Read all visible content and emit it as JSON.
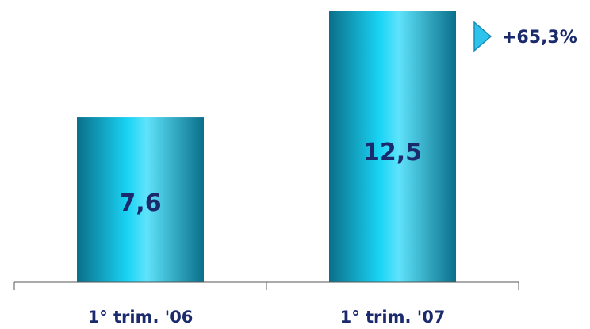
{
  "chart_data": {
    "type": "bar",
    "categories": [
      "1° trim. '06",
      "1° trim. '07"
    ],
    "values": [
      7.6,
      12.5
    ],
    "value_labels": [
      "7,6",
      "12,5"
    ],
    "title": "",
    "xlabel": "",
    "ylabel": "",
    "ylim": [
      0,
      12.5
    ],
    "grid": false,
    "legend": "none",
    "annotation": {
      "text": "+65,3%",
      "icon": "triangle-right-icon"
    },
    "colors": {
      "bar_edge": "#0a6f8a",
      "bar_mid": "#1ad4f5",
      "bar_light": "#5fe3fb",
      "text": "#1a2a6c",
      "axis": "#555555",
      "icon_fill": "#2ec3ec",
      "icon_stroke": "#1a8db8"
    }
  }
}
